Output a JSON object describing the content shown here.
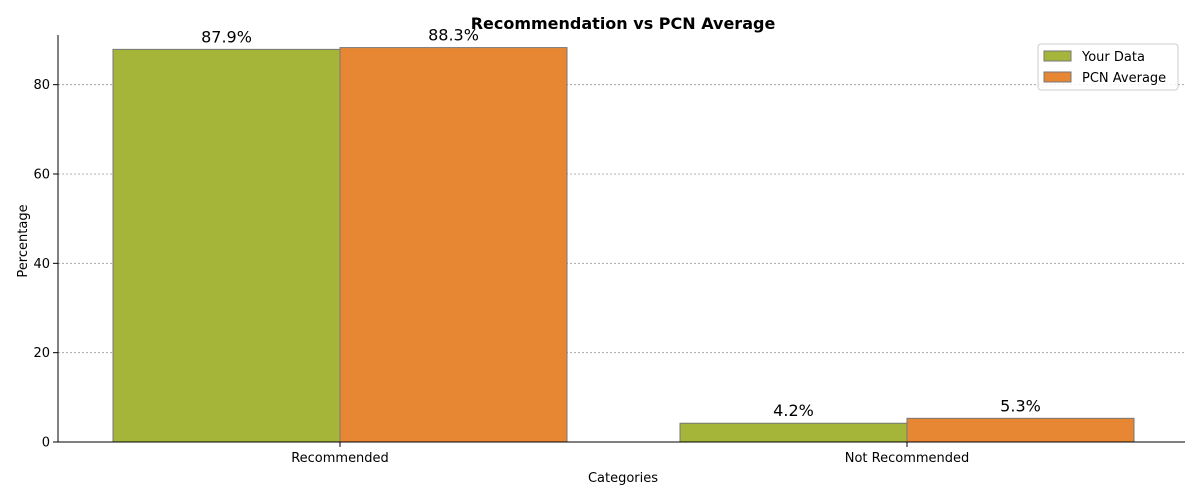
{
  "chart_data": {
    "type": "bar",
    "title": "Recommendation vs PCN Average",
    "xlabel": "Categories",
    "ylabel": "Percentage",
    "categories": [
      "Recommended",
      "Not Recommended"
    ],
    "series": [
      {
        "name": "Your Data",
        "values": [
          87.9,
          4.2
        ],
        "labels": [
          "87.9%",
          "4.2%"
        ],
        "color": "#a4b53a"
      },
      {
        "name": "PCN Average",
        "values": [
          88.3,
          5.3
        ],
        "labels": [
          "88.3%",
          "5.3%"
        ],
        "color": "#e88733"
      }
    ],
    "ylim": [
      0,
      90
    ],
    "yticks": [
      0,
      20,
      40,
      60,
      80
    ],
    "ytick_labels": [
      "0",
      "20",
      "40",
      "60",
      "80"
    ],
    "grid": "y-dashed",
    "legend_position": "top-right"
  }
}
